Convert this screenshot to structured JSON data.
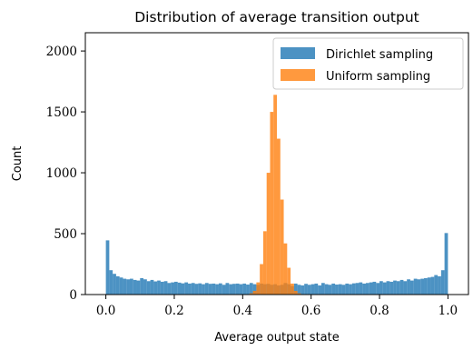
{
  "chart_data": {
    "type": "bar",
    "title": "Distribution of average transition output",
    "xlabel": "Average output state",
    "ylabel": "Count",
    "xlim": [
      -0.06,
      1.06
    ],
    "ylim": [
      0,
      2150
    ],
    "xticks": [
      0.0,
      0.2,
      0.4,
      0.6,
      0.8,
      1.0
    ],
    "xtick_labels": [
      "0.0",
      "0.2",
      "0.4",
      "0.6",
      "0.8",
      "1.0"
    ],
    "yticks": [
      0,
      500,
      1000,
      1500,
      2000
    ],
    "ytick_labels": [
      "0",
      "500",
      "1000",
      "1500",
      "2000"
    ],
    "bin_width": 0.01,
    "legend_position": "top-right",
    "grid": false,
    "series": [
      {
        "name": "Dirichlet sampling",
        "color": "#1f77b4",
        "opacity": 0.8,
        "bin_start": 0.0,
        "values": [
          445,
          200,
          170,
          150,
          140,
          130,
          125,
          130,
          120,
          115,
          135,
          125,
          110,
          120,
          108,
          115,
          105,
          110,
          95,
          100,
          105,
          98,
          92,
          100,
          90,
          95,
          88,
          92,
          85,
          95,
          88,
          90,
          85,
          92,
          80,
          95,
          85,
          88,
          90,
          85,
          90,
          82,
          95,
          85,
          80,
          90,
          85,
          88,
          80,
          85,
          75,
          80,
          95,
          85,
          70,
          90,
          80,
          75,
          88,
          80,
          85,
          90,
          75,
          95,
          85,
          80,
          90,
          82,
          85,
          80,
          90,
          85,
          92,
          95,
          100,
          90,
          95,
          100,
          105,
          95,
          110,
          100,
          110,
          105,
          115,
          110,
          120,
          110,
          125,
          115,
          130,
          125,
          130,
          135,
          140,
          145,
          160,
          150,
          200,
          505
        ]
      },
      {
        "name": "Uniform sampling",
        "color": "#ff7f0e",
        "opacity": 0.8,
        "bin_start": 0.42,
        "values": [
          10,
          30,
          100,
          250,
          520,
          1000,
          1500,
          1640,
          1280,
          780,
          420,
          220,
          90,
          30,
          10
        ]
      }
    ]
  }
}
